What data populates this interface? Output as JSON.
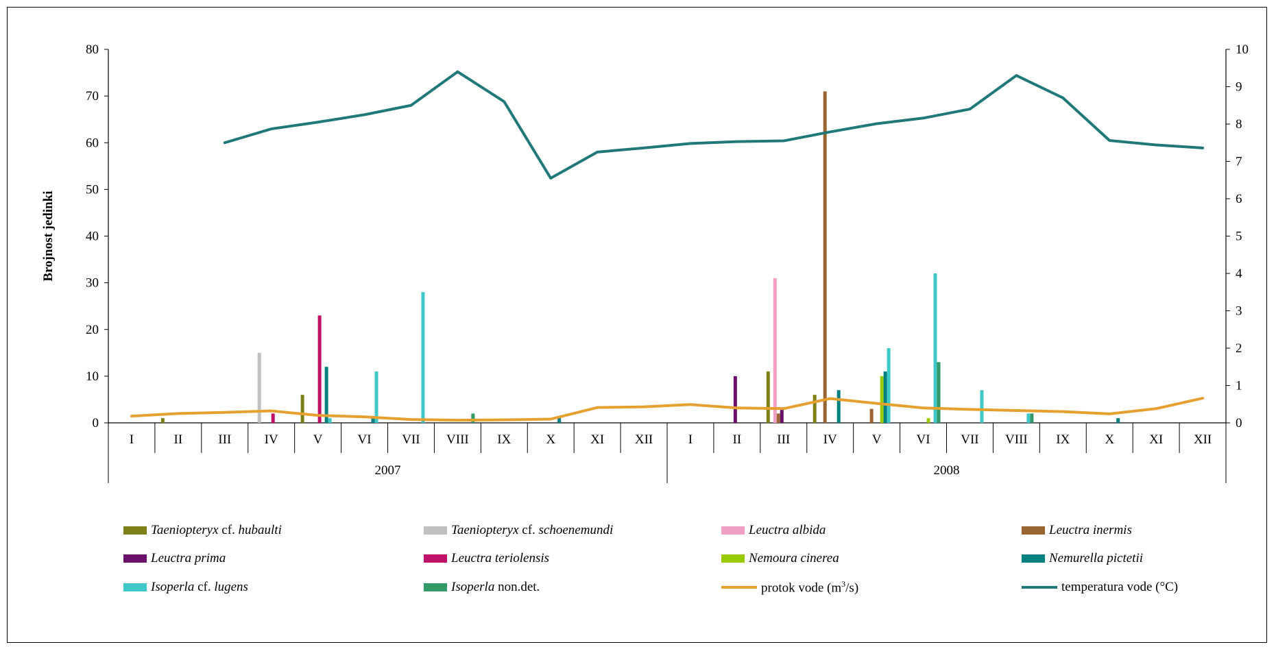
{
  "chart_data": {
    "type": "bar",
    "ylabel": "Brojnost jedinki",
    "ylim": [
      0,
      80
    ],
    "y2lim": [
      0,
      10
    ],
    "yticks": [
      "0",
      "10",
      "20",
      "30",
      "40",
      "50",
      "60",
      "70",
      "80"
    ],
    "y2ticks": [
      "0",
      "1",
      "2",
      "3",
      "4",
      "5",
      "6",
      "7",
      "8",
      "9",
      "10"
    ],
    "categories": [
      "I",
      "II",
      "III",
      "IV",
      "V",
      "VI",
      "VII",
      "VIII",
      "IX",
      "X",
      "XI",
      "XII",
      "I",
      "II",
      "III",
      "IV",
      "V",
      "VI",
      "VII",
      "VIII",
      "IX",
      "X",
      "XI",
      "XII"
    ],
    "years": [
      "2007",
      "2008"
    ],
    "series": [
      {
        "name": "Taeniopteryx cf. hubaulti",
        "legend_parts": [
          {
            "t": "Taeniopteryx",
            "i": true
          },
          {
            "t": " cf. ",
            "i": false
          },
          {
            "t": "hubaulti",
            "i": true
          }
        ],
        "color": "#7f7f17",
        "values": [
          0,
          1,
          0,
          0,
          6,
          0,
          0,
          0,
          0,
          0,
          0,
          0,
          0,
          0,
          11,
          6,
          0,
          0,
          0,
          0,
          0,
          0,
          0,
          0
        ]
      },
      {
        "name": "Taeniopteryx cf. schoenemundi",
        "legend_parts": [
          {
            "t": "Taeniopteryx",
            "i": true
          },
          {
            "t": " cf. ",
            "i": false
          },
          {
            "t": "schoenemundi",
            "i": true
          }
        ],
        "color": "#c0c0c0",
        "values": [
          0,
          0,
          0,
          15,
          0,
          0,
          0,
          0,
          0,
          0,
          0,
          0,
          0,
          0,
          0,
          0,
          0,
          0,
          0,
          0,
          0,
          0,
          0,
          0
        ]
      },
      {
        "name": "Leuctra albida",
        "legend_parts": [
          {
            "t": "Leuctra albida",
            "i": true
          }
        ],
        "color": "#f29fc5",
        "values": [
          0,
          0,
          0,
          0,
          0,
          0,
          0,
          0,
          0,
          0,
          0,
          0,
          0,
          0,
          31,
          0,
          0,
          0,
          0,
          0,
          0,
          0,
          0,
          0
        ]
      },
      {
        "name": "Leuctra inermis",
        "legend_parts": [
          {
            "t": "Leuctra inermis",
            "i": true
          }
        ],
        "color": "#996633",
        "values": [
          0,
          0,
          0,
          0,
          0,
          0,
          0,
          0,
          0,
          0,
          0,
          0,
          0,
          0,
          2,
          71,
          3,
          0,
          0,
          0,
          0,
          0,
          0,
          0
        ]
      },
      {
        "name": "Leuctra prima",
        "legend_parts": [
          {
            "t": "Leuctra prima",
            "i": true
          }
        ],
        "color": "#6a0f6a",
        "values": [
          0,
          0,
          0,
          0,
          0,
          0,
          0,
          0,
          0,
          0,
          0,
          0,
          0,
          10,
          3,
          0,
          0,
          0,
          0,
          0,
          0,
          0,
          0,
          0
        ]
      },
      {
        "name": "Leuctra teriolensis",
        "legend_parts": [
          {
            "t": "Leuctra teriolensis",
            "i": true
          }
        ],
        "color": "#c0106a",
        "values": [
          0,
          0,
          0,
          2,
          23,
          0,
          0,
          0,
          0,
          0,
          0,
          0,
          0,
          0,
          0,
          0,
          0,
          0,
          0,
          0,
          0,
          0,
          0,
          0
        ]
      },
      {
        "name": "Nemoura cinerea",
        "legend_parts": [
          {
            "t": "Nemoura cinerea",
            "i": true
          }
        ],
        "color": "#99cc00",
        "values": [
          0,
          0,
          0,
          0,
          0,
          0,
          0,
          0,
          0,
          0,
          0,
          0,
          0,
          0,
          0,
          0,
          10,
          1,
          0,
          0,
          0,
          0,
          0,
          0
        ]
      },
      {
        "name": "Nemurella pictetii",
        "legend_parts": [
          {
            "t": "Nemurella pictetii",
            "i": true
          }
        ],
        "color": "#008080",
        "values": [
          0,
          0,
          0,
          0,
          12,
          1,
          0,
          0,
          0,
          1,
          0,
          0,
          0,
          0,
          0,
          7,
          11,
          0,
          0,
          0,
          0,
          1,
          0,
          0
        ]
      },
      {
        "name": "Isoperla cf. lugens",
        "legend_parts": [
          {
            "t": "Isoperla",
            "i": true
          },
          {
            "t": " cf. ",
            "i": false
          },
          {
            "t": "lugens",
            "i": true
          }
        ],
        "color": "#40c8c8",
        "values": [
          0,
          0,
          0,
          0,
          1,
          11,
          28,
          0,
          0,
          0,
          0,
          0,
          0,
          0,
          0,
          0,
          16,
          32,
          7,
          2,
          0,
          0,
          0,
          0
        ]
      },
      {
        "name": "Isoperla non.det.",
        "legend_parts": [
          {
            "t": "Isoperla",
            "i": true
          },
          {
            "t": " non.det.",
            "i": false
          }
        ],
        "color": "#339966",
        "values": [
          0,
          0,
          0,
          0,
          0,
          0,
          0,
          2,
          0,
          0,
          0,
          0,
          0,
          0,
          0,
          0,
          0,
          13,
          0,
          2,
          0,
          0,
          0,
          0
        ]
      }
    ],
    "lines": [
      {
        "name": "protok vode (m³/s)",
        "legend_parts": [
          {
            "t": "protok vode (m",
            "i": false
          },
          {
            "t": "3",
            "i": false,
            "sup": true
          },
          {
            "t": "/s)",
            "i": false
          }
        ],
        "color": "#e5a030",
        "axis": "right",
        "values": [
          0.18,
          0.25,
          0.28,
          0.32,
          0.2,
          0.16,
          0.09,
          0.07,
          0.08,
          0.1,
          0.41,
          0.43,
          0.49,
          0.4,
          0.38,
          0.65,
          0.52,
          0.4,
          0.36,
          0.33,
          0.3,
          0.24,
          0.38,
          0.66
        ]
      },
      {
        "name": "temperatura vode (°C)",
        "legend_parts": [
          {
            "t": "temperatura vode (°C)",
            "i": false
          }
        ],
        "color": "#207878",
        "axis": "right",
        "values": [
          null,
          null,
          7.5,
          7.87,
          8.05,
          8.25,
          8.5,
          9.4,
          8.6,
          6.55,
          7.25,
          7.36,
          7.48,
          7.53,
          7.55,
          7.79,
          8.01,
          8.16,
          8.4,
          9.3,
          8.7,
          7.56,
          7.44,
          7.36
        ]
      }
    ],
    "legend_position": "bottom",
    "grid": false
  }
}
